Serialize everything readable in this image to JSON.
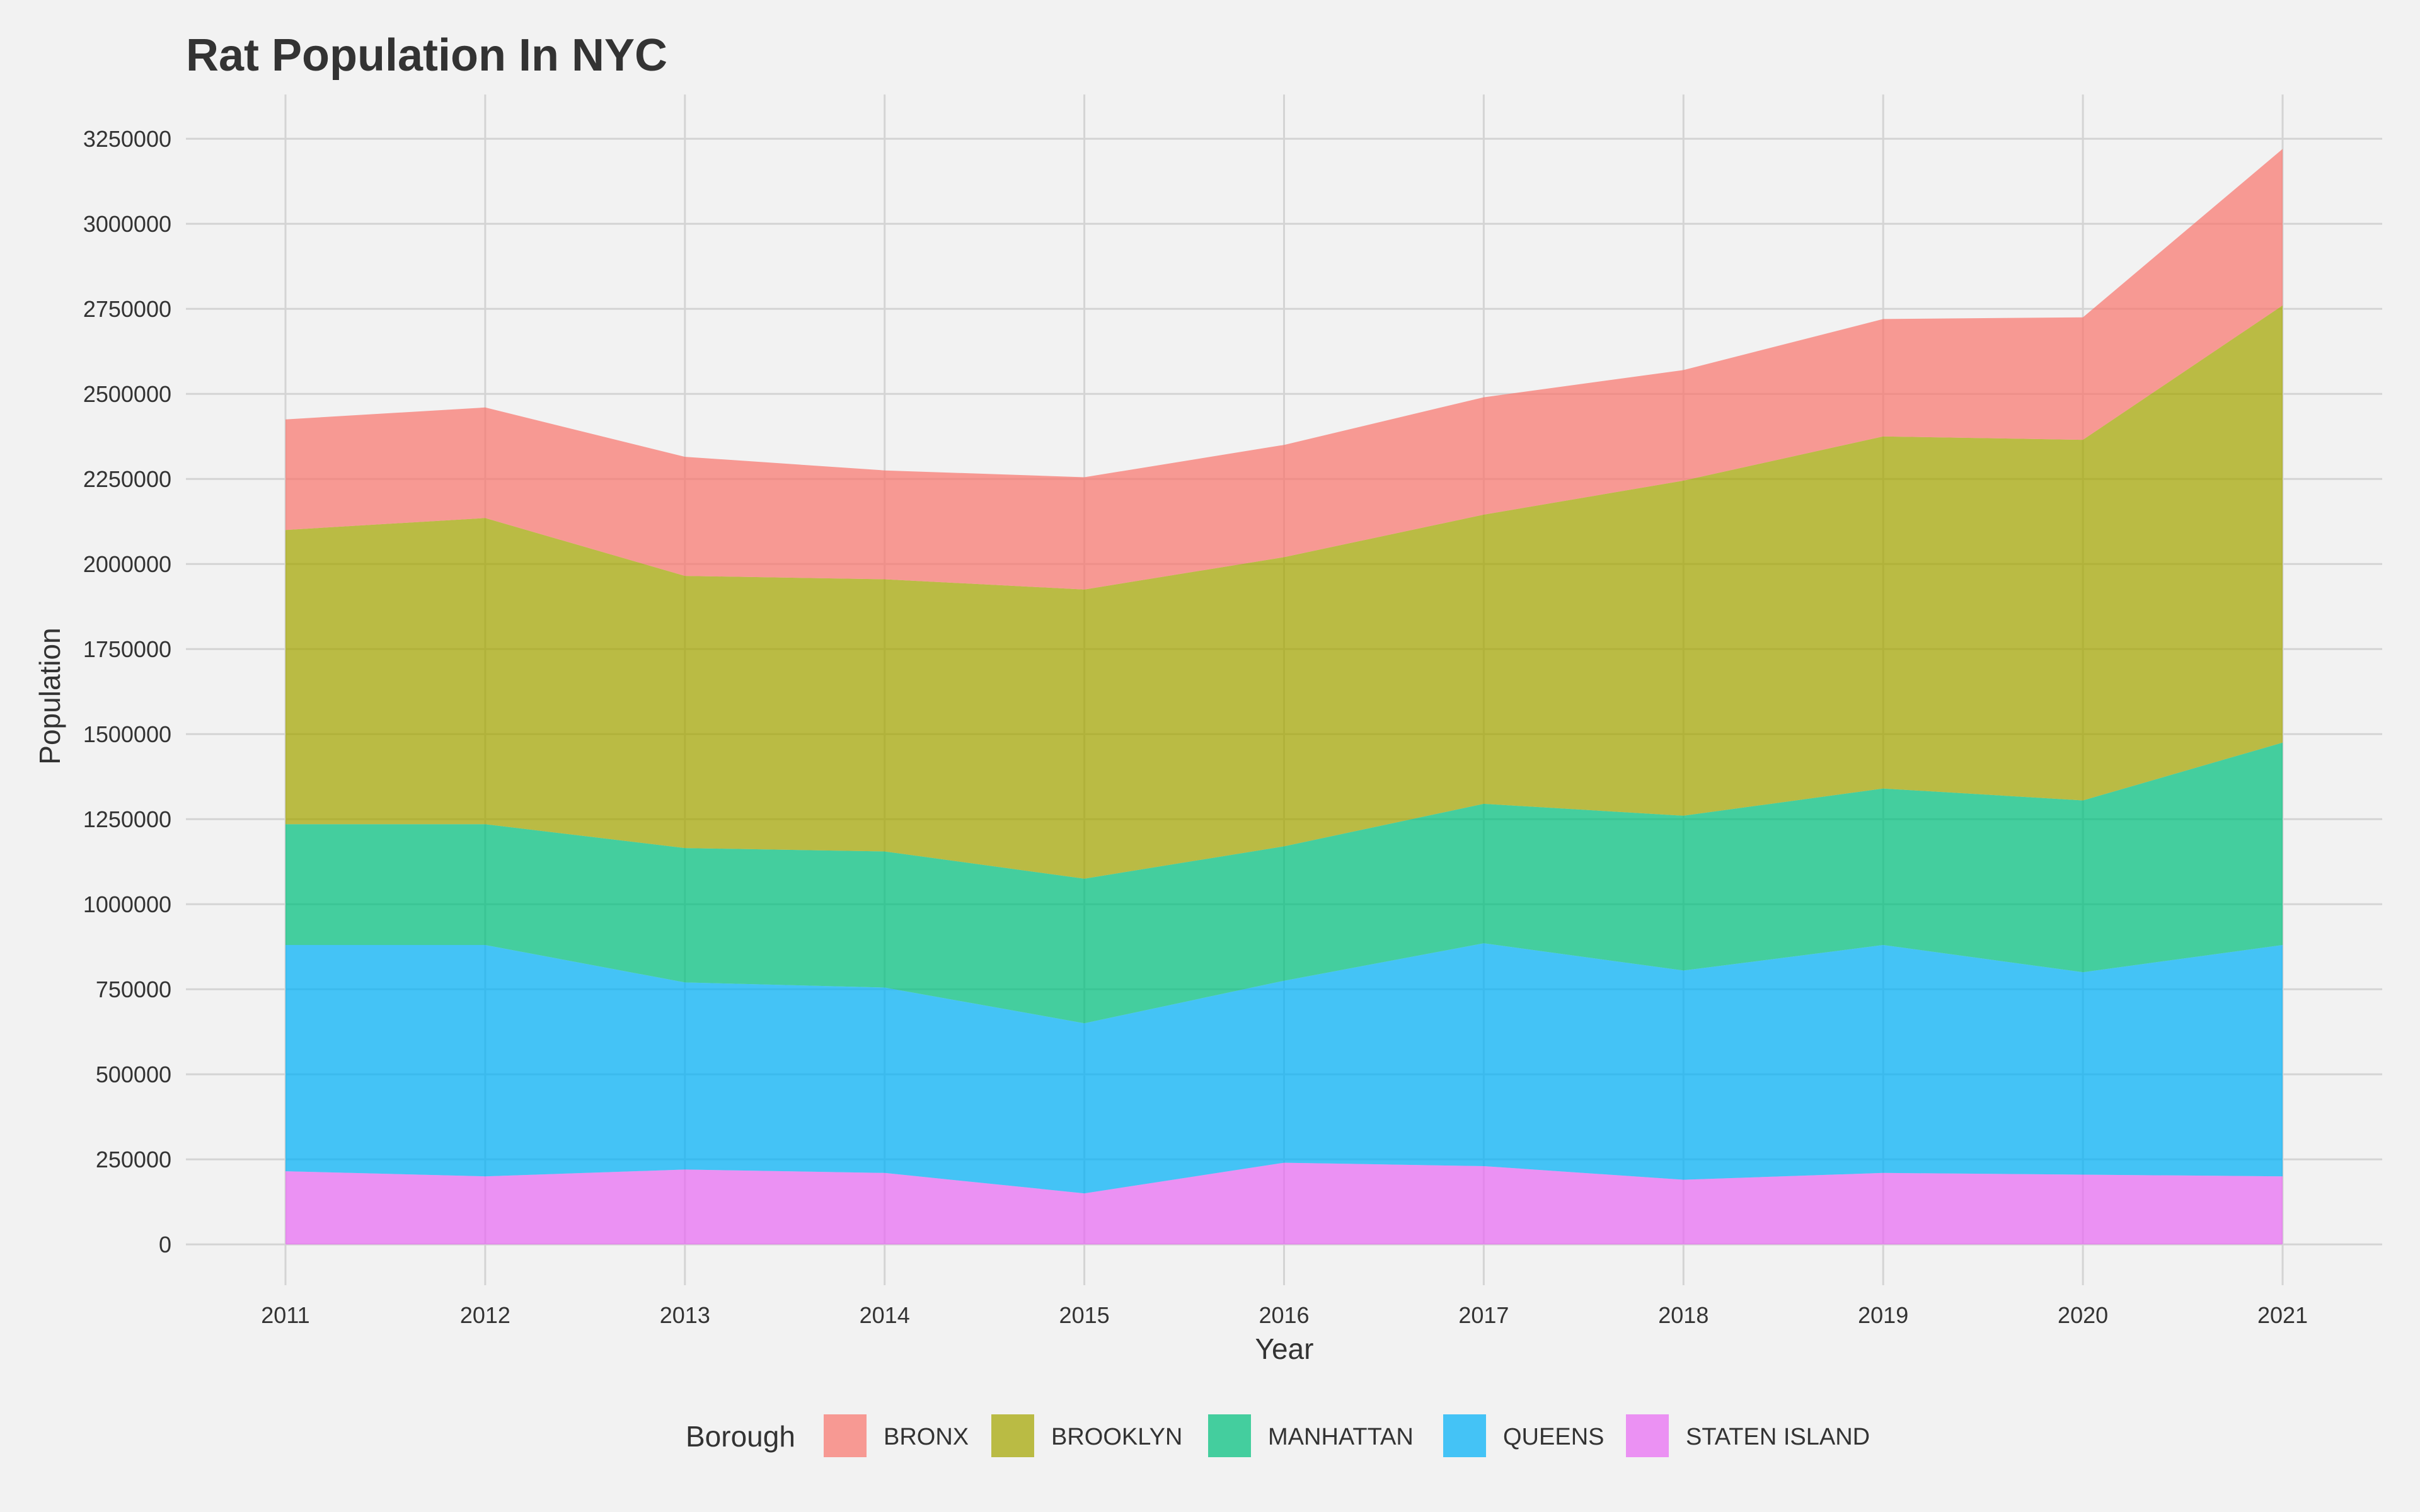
{
  "chart_data": {
    "type": "area",
    "stacked": true,
    "title": "Rat Population In NYC",
    "xlabel": "Year",
    "ylabel": "Population",
    "x": [
      2011,
      2012,
      2013,
      2014,
      2015,
      2016,
      2017,
      2018,
      2019,
      2020,
      2021
    ],
    "ylim": [
      -120000,
      3380000
    ],
    "yticks": [
      0,
      250000,
      500000,
      750000,
      1000000,
      1250000,
      1500000,
      1750000,
      2000000,
      2250000,
      2500000,
      2750000,
      3000000,
      3250000
    ],
    "grid": true,
    "legend_position": "bottom",
    "legend_title": "Borough",
    "series": [
      {
        "name": "BRONX",
        "color": "#f8766d",
        "values": [
          325000,
          325000,
          350000,
          320000,
          330000,
          330000,
          345000,
          325000,
          345000,
          360000,
          460000
        ]
      },
      {
        "name": "BROOKLYN",
        "color": "#a3a500",
        "values": [
          865000,
          900000,
          800000,
          800000,
          850000,
          850000,
          850000,
          985000,
          1035000,
          1060000,
          1285000
        ]
      },
      {
        "name": "MANHATTAN",
        "color": "#00bf7d",
        "values": [
          355000,
          355000,
          395000,
          400000,
          425000,
          395000,
          410000,
          455000,
          460000,
          505000,
          595000
        ]
      },
      {
        "name": "QUEENS",
        "color": "#00b0f6",
        "values": [
          665000,
          680000,
          550000,
          545000,
          500000,
          535000,
          655000,
          615000,
          670000,
          595000,
          680000
        ]
      },
      {
        "name": "STATEN ISLAND",
        "color": "#e76bf3",
        "values": [
          215000,
          200000,
          220000,
          210000,
          150000,
          240000,
          230000,
          190000,
          210000,
          205000,
          200000
        ]
      }
    ]
  }
}
